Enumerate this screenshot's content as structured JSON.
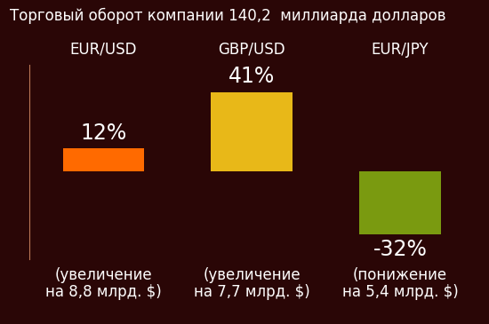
{
  "chart_data": {
    "type": "bar",
    "title": "Торговый оборот компании 140,2  миллиарда долларов",
    "categories": [
      "EUR/USD",
      "GBP/USD",
      "EUR/JPY"
    ],
    "values": [
      12,
      41,
      -32
    ],
    "value_labels": [
      "12%",
      "41%",
      "-32%"
    ],
    "data_labels": true,
    "colors": [
      "#ff6a00",
      "#e8b818",
      "#7a9a10"
    ],
    "annotations": [
      "(увеличение\nна 8,8 млрд. $)",
      "(увеличение\nна 7,7 млрд. $)",
      "(понижение\nна 5,4 млрд. $)"
    ],
    "ylim": [
      -45,
      55
    ],
    "yticks": [],
    "tick_labels": "x"
  }
}
